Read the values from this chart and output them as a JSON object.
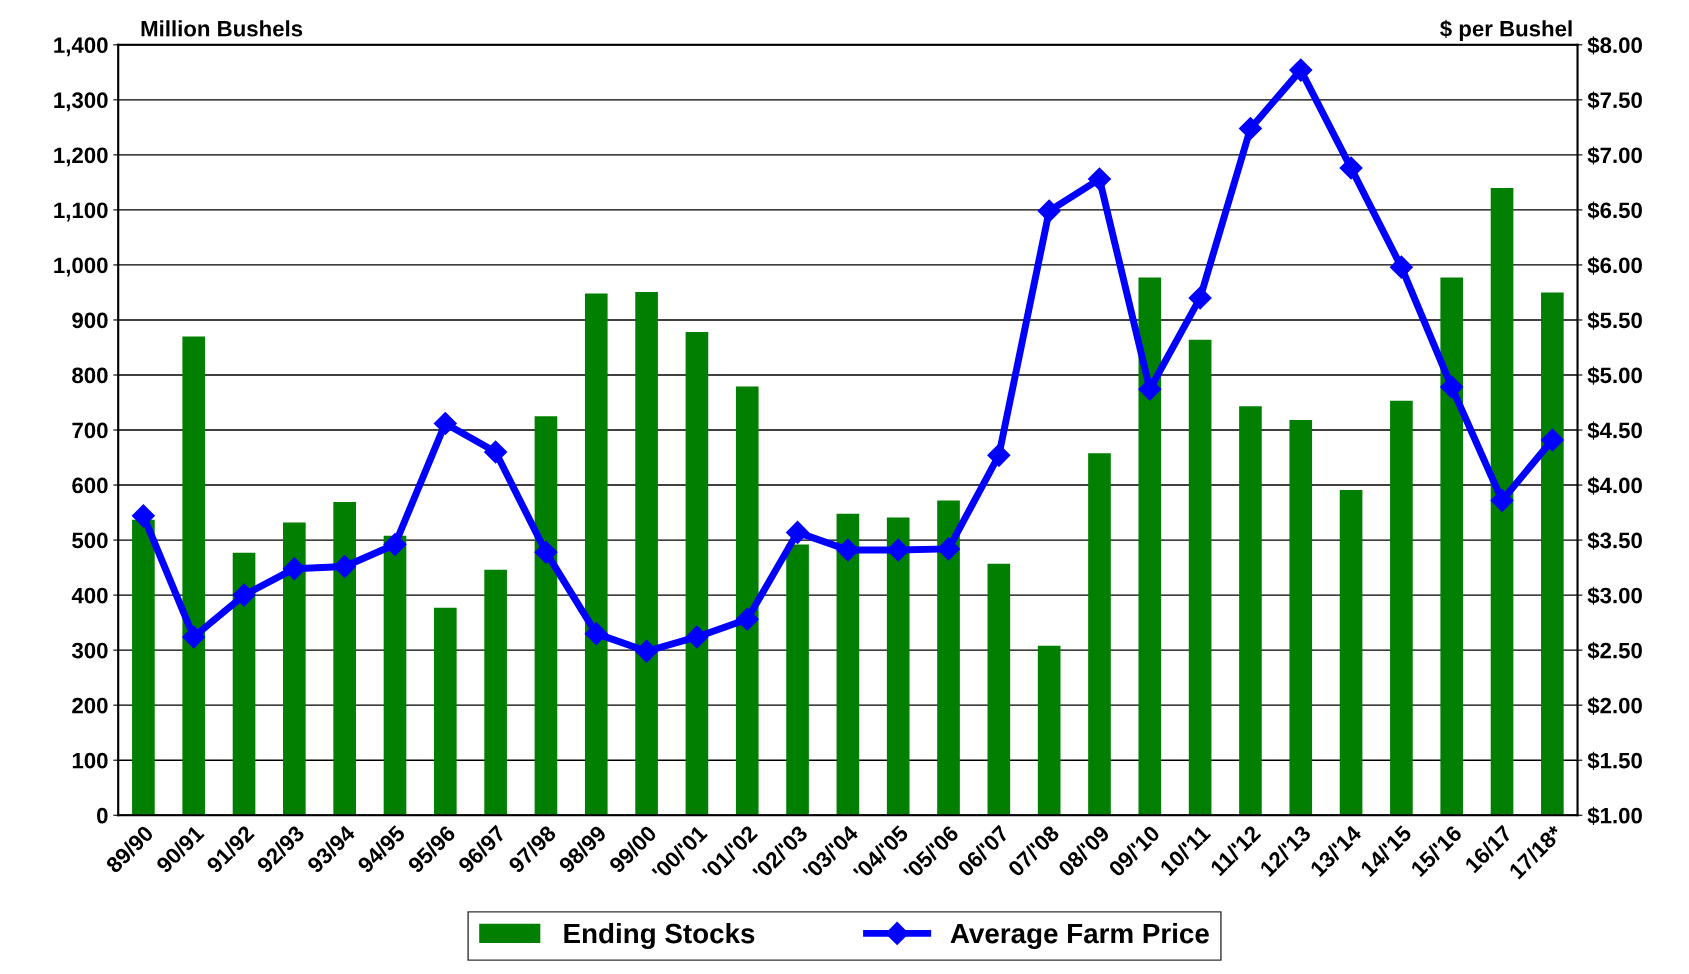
{
  "chart_data": {
    "type": "bar",
    "categories": [
      "89/90",
      "90/91",
      "91/92",
      "92/93",
      "93/94",
      "94/95",
      "95/96",
      "96/97",
      "97/98",
      "98/99",
      "99/00",
      "'00/'01",
      "'01/'02",
      "'02/'03",
      "'03/'04",
      "'04/'05",
      "'05/'06",
      "06/'07",
      "07/'08",
      "08/'09",
      "09/'10",
      "10/'11",
      "11/'12",
      "12/'13",
      "13/'14",
      "14/'15",
      "15/'16",
      "16/17",
      "17/18*"
    ],
    "series": [
      {
        "name": "Ending Stocks",
        "color": "#007f00",
        "values": [
          537,
          870,
          477,
          532,
          569,
          508,
          377,
          446,
          725,
          948,
          951,
          878,
          779,
          492,
          548,
          541,
          572,
          457,
          308,
          658,
          977,
          864,
          743,
          718,
          591,
          753,
          977,
          1140,
          950
        ]
      },
      {
        "name": "Average Farm Price",
        "type": "line",
        "axis": "y2",
        "color": "#0000ff",
        "marker": "diamond",
        "values": [
          3.72,
          2.62,
          3.0,
          3.24,
          3.26,
          3.46,
          4.56,
          4.3,
          3.39,
          2.65,
          2.49,
          2.62,
          2.78,
          3.57,
          3.41,
          3.41,
          3.42,
          4.27,
          6.49,
          6.78,
          4.87,
          5.7,
          7.24,
          7.77,
          6.88,
          5.98,
          4.89,
          3.86,
          4.41
        ]
      }
    ],
    "ylabel": "Million Bushels",
    "y2label": "$ per Bushel",
    "ylim": [
      0,
      1400
    ],
    "yticks": [
      0,
      100,
      200,
      300,
      400,
      500,
      600,
      700,
      800,
      900,
      {
        "value": 1000,
        "label": "1,000"
      },
      {
        "value": 1100,
        "label": "1,100"
      },
      {
        "value": 1200,
        "label": "1,200"
      },
      {
        "value": 1300,
        "label": "1,300"
      },
      {
        "value": 1400,
        "label": "1,400"
      }
    ],
    "y2lim": [
      1,
      8
    ],
    "y2ticks": [
      {
        "value": 1,
        "label": "$1.00"
      },
      {
        "value": 1.5,
        "label": "$1.50"
      },
      {
        "value": 2,
        "label": "$2.00"
      },
      {
        "value": 2.5,
        "label": "$2.50"
      },
      {
        "value": 3,
        "label": "$3.00"
      },
      {
        "value": 3.5,
        "label": "$3.50"
      },
      {
        "value": 4,
        "label": "$4.00"
      },
      {
        "value": 4.5,
        "label": "$4.50"
      },
      {
        "value": 5,
        "label": "$5.00"
      },
      {
        "value": 5.5,
        "label": "$5.50"
      },
      {
        "value": 6,
        "label": "$6.00"
      },
      {
        "value": 6.5,
        "label": "$6.50"
      },
      {
        "value": 7,
        "label": "$7.00"
      },
      {
        "value": 7.5,
        "label": "$7.50"
      },
      {
        "value": 8,
        "label": "$8.00"
      }
    ],
    "grid": "y",
    "legend": "bottom"
  }
}
